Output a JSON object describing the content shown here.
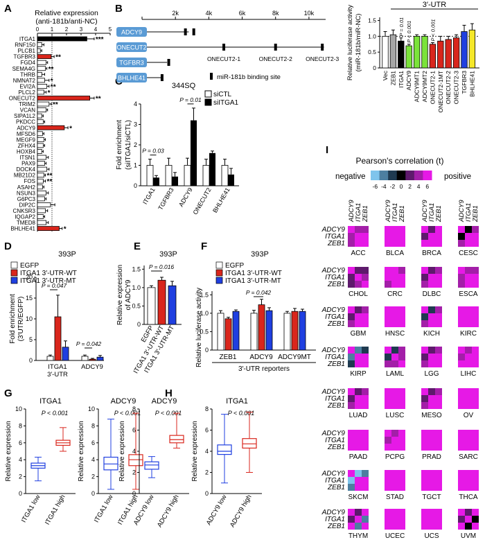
{
  "colors": {
    "black": "#000000",
    "red": "#d9261c",
    "blue": "#1f3fe0",
    "green": "#7be33a",
    "gray": "#a6a6a6",
    "yellow": "#f5e829",
    "boxBlue": "#5a9bd5",
    "magenta": "#e619e6",
    "purple": "#9b1fa0"
  },
  "panels": {
    "A": "A",
    "B": "B",
    "C": "C",
    "D": "D",
    "E": "E",
    "F": "F",
    "G": "G",
    "H": "H",
    "I": "I"
  },
  "panelA": {
    "title": "Relative expression",
    "subtitle": "(anti-181b/anti-NC)",
    "xticks": [
      "0",
      "1",
      "2",
      "3",
      "4",
      "5"
    ],
    "genes": [
      "ITGA1",
      "RNF150",
      "PLCB1",
      "TGFBR3",
      "FGD4",
      "SEMA4G",
      "THRB",
      "NMNAT2",
      "EVI2A",
      "PLCL2",
      "ONECUT2",
      "TRIM2",
      "VCAN",
      "SIPA1L2",
      "PKDCC",
      "ADCY9",
      "MFSD6",
      "MEGF9",
      "ZFHX4",
      "HOXB4",
      "ITSN1",
      "PAX9",
      "DOCK4",
      "MB21D2",
      "FOS",
      "ASAH2",
      "NSUN3",
      "G6PC3",
      "DIP2C",
      "CNKSR3",
      "IQGAP2",
      "TMED8",
      "BHLHE41"
    ],
    "values": [
      3.4,
      0.3,
      0.2,
      0.95,
      0.6,
      0.55,
      0.3,
      0.5,
      0.65,
      0.45,
      3.6,
      0.8,
      0.6,
      0.3,
      0.4,
      1.85,
      0.35,
      0.45,
      0.4,
      0.3,
      0.6,
      0.5,
      0.65,
      0.45,
      0.4,
      0.35,
      0.6,
      0.5,
      0.9,
      0.55,
      0.4,
      0.6,
      1.5
    ],
    "errors": [
      0.5,
      0.15,
      0.1,
      0.2,
      0.1,
      0.1,
      0.2,
      0.3,
      0.15,
      0.15,
      0.3,
      0.15,
      0.1,
      0.1,
      0.1,
      0.25,
      0.1,
      0.1,
      0.1,
      0.1,
      0.15,
      0.1,
      0.15,
      0.1,
      0.15,
      0.1,
      0.15,
      0.1,
      0.3,
      0.15,
      0.1,
      0.15,
      0.2
    ],
    "fill": [
      "black",
      "white",
      "white",
      "red",
      "white",
      "white",
      "white",
      "white",
      "white",
      "white",
      "red",
      "white",
      "white",
      "white",
      "white",
      "red",
      "white",
      "white",
      "white",
      "white",
      "white",
      "white",
      "white",
      "white",
      "white",
      "white",
      "white",
      "white",
      "white",
      "white",
      "white",
      "white",
      "red"
    ],
    "stars": [
      "***",
      "",
      "",
      "**",
      "",
      "**",
      "",
      "*",
      "**",
      "*",
      "**",
      "**",
      "",
      "",
      "",
      "*",
      "",
      "",
      "",
      "",
      "",
      "",
      "",
      "**",
      "**",
      "",
      "",
      "",
      "",
      "",
      "",
      "",
      "*"
    ]
  },
  "panelB": {
    "ruler": [
      "2k",
      "4k",
      "6k",
      "8k",
      "10k"
    ],
    "genes": [
      "ADCY9",
      "ONECUT2",
      "TGFBR3",
      "BHLHE41"
    ],
    "sites": [
      "ONECUT2-1",
      "ONECUT2-2",
      "ONECUT2-3"
    ],
    "legend": "miR-181b binding site",
    "luc": {
      "bracket": "3′-UTR",
      "ylabel": "Relative luciferase activity",
      "ylabel2": "(miR-181b/miR-NC)",
      "yticks": [
        "0",
        "0.5",
        "1.0",
        "1.5"
      ],
      "labels": [
        "Vec",
        "ZEB1",
        "ITGA1",
        "ADCY9",
        "ADCY9MT1",
        "ADCY9MT2",
        "ONECUT2-1",
        "ONECUT2-1MT",
        "ONECUT2-2",
        "ONECUT2-3",
        "TGFBR3",
        "BHLHE41"
      ],
      "values": [
        1.0,
        1.05,
        0.85,
        0.7,
        1.0,
        1.0,
        0.75,
        0.85,
        0.9,
        0.95,
        1.15,
        1.2
      ],
      "errors": [
        0.15,
        0.15,
        0.1,
        0.05,
        0.05,
        0.05,
        0.05,
        0.15,
        0.1,
        0.1,
        0.2,
        0.2
      ],
      "fill": [
        "white",
        "gray",
        "black",
        "green",
        "green",
        "green",
        "red",
        "red",
        "red",
        "red",
        "blue",
        "yellow"
      ],
      "pvals": [
        "",
        "",
        "P = 0.01",
        "P < 0.001",
        "",
        "",
        "P < 0.001",
        "",
        "",
        "",
        "",
        ""
      ]
    }
  },
  "panelC": {
    "title": "344SQ",
    "legend": [
      "siCTL",
      "siITGA1"
    ],
    "ylabel": "Fold enrichment",
    "ylabel2": "(siITGA1/siCTL)",
    "yticks": [
      "0",
      "1",
      "2",
      "3",
      "4"
    ],
    "groups": [
      "ITGA1",
      "TGFBR3",
      "ADCY9",
      "ONECUT2",
      "BHLHE41"
    ],
    "ctl": [
      1.0,
      1.0,
      1.0,
      1.0,
      1.0
    ],
    "ctlErr": [
      0.3,
      0.35,
      0.35,
      0.3,
      0.3
    ],
    "si": [
      0.4,
      0.45,
      3.2,
      1.6,
      0.55
    ],
    "siErr": [
      0.1,
      0.2,
      0.6,
      0.1,
      0.3
    ],
    "pvals": [
      "P = 0.03",
      "",
      "P = 0.01",
      "",
      ""
    ]
  },
  "panelD": {
    "title": "393P",
    "legend": [
      "EGFP",
      "ITGA1 3′-UTR-WT",
      "ITGA1 3′-UTR-MT"
    ],
    "ylabel": "Fold enrichment",
    "ylabel2": "(3′UTR/EGFP)",
    "yticks": [
      "0",
      "5",
      "10",
      "15",
      "20"
    ],
    "groups": [
      "ITGA1",
      "ADCY9"
    ],
    "groupSub": [
      "3′-UTR",
      ""
    ],
    "values": [
      [
        1.0,
        10.5,
        3.2
      ],
      [
        1.0,
        0.3,
        0.8
      ]
    ],
    "errors": [
      [
        0.3,
        5.2,
        1.5
      ],
      [
        0.3,
        0.2,
        0.4
      ]
    ],
    "pvals": [
      "P = 0.047",
      "P = 0.042"
    ]
  },
  "panelE": {
    "title": "393P",
    "ylabel": "Relative expression",
    "ylabel2": "of ADCY9",
    "yticks": [
      "0",
      "0.5",
      "1.0",
      "1.5"
    ],
    "pval": "P = 0.016",
    "labels": [
      "EGFP",
      "ITGA1 3′-UTR-WT",
      "ITGA1 3′-UTR-MT"
    ],
    "values": [
      1.0,
      1.2,
      1.05
    ],
    "errors": [
      0.05,
      0.08,
      0.12
    ]
  },
  "panelF": {
    "title": "393P",
    "legend": [
      "EGFP",
      "ITGA1 3′-UTR-WT",
      "ITGA1 3′-UTR-MT"
    ],
    "ylabel": "Relative luciferase activity",
    "yticks": [
      "0",
      "0.5",
      "1.0",
      "1.5"
    ],
    "pval": "P = 0.042",
    "groups": [
      "ZEB1",
      "ADCY9",
      "ADCY9MT"
    ],
    "footer": "3′-UTR reporters",
    "values": [
      [
        1.0,
        0.85,
        1.05
      ],
      [
        1.0,
        1.23,
        1.07
      ],
      [
        1.0,
        1.05,
        1.05
      ]
    ],
    "errors": [
      [
        0.07,
        0.04,
        0.04
      ],
      [
        0.08,
        0.15,
        0.08
      ],
      [
        0.05,
        0.08,
        0.06
      ]
    ]
  },
  "panelG": {
    "ylabel": "Relative expression",
    "yticks": [
      "0",
      "2",
      "4",
      "6",
      "8",
      "10"
    ],
    "plots": [
      {
        "title": "ITGA1",
        "pval": "P < 0.001",
        "labels": [
          "ITGA1 low",
          "ITGA1 high"
        ],
        "boxes": [
          {
            "min": 1.5,
            "q1": 3.0,
            "med": 3.3,
            "q3": 3.6,
            "max": 4.3
          },
          {
            "min": 5.0,
            "q1": 5.7,
            "med": 6.0,
            "q3": 6.3,
            "max": 7.8
          }
        ]
      },
      {
        "title": "ADCY9",
        "pval": "P < 0.001",
        "labels": [
          "ITGA1 low",
          "ITGA1 high"
        ],
        "boxes": [
          {
            "min": 0.5,
            "q1": 2.8,
            "med": 3.5,
            "q3": 4.3,
            "max": 8.8
          },
          {
            "min": 0.5,
            "q1": 3.3,
            "med": 4.0,
            "q3": 4.6,
            "max": 9.5
          }
        ]
      }
    ]
  },
  "panelH": {
    "ylabel": "Relative expression",
    "yticks": [
      "0",
      "2",
      "4",
      "6",
      "8"
    ],
    "plots": [
      {
        "title": "ADCY9",
        "pval": "P < 0.001",
        "labels": [
          "ADCY9 low",
          "ADCY9 high"
        ],
        "boxes": [
          {
            "min": 1.5,
            "q1": 2.3,
            "med": 2.7,
            "q3": 3.0,
            "max": 3.5
          },
          {
            "min": 4.3,
            "q1": 4.8,
            "med": 5.1,
            "q3": 5.5,
            "max": 7.6
          }
        ]
      },
      {
        "title": "ITGA1",
        "pval": "P < 0.001",
        "labels": [
          "ADCY9 low",
          "ADCY9 high"
        ],
        "boxes": [
          {
            "min": 1.0,
            "q1": 3.7,
            "med": 4.0,
            "q3": 4.6,
            "max": 7.5
          },
          {
            "min": 2.0,
            "q1": 4.3,
            "med": 4.7,
            "q3": 5.2,
            "max": 7.7
          }
        ]
      }
    ]
  },
  "panelI": {
    "title": "Pearson's correlation (t)",
    "negative": "negative",
    "positive": "positive",
    "scale": [
      "-6",
      "-4",
      "-2",
      "0",
      "2",
      "4",
      "6"
    ],
    "rowLabels": [
      "ADCY9",
      "ITGA1",
      "ZEB1"
    ],
    "cancers": [
      "ACC",
      "BLCA",
      "BRCA",
      "CESC",
      "CHOL",
      "CRC",
      "DLBC",
      "ESCA",
      "GBM",
      "HNSC",
      "KICH",
      "KIRC",
      "KIRP",
      "LAML",
      "LGG",
      "LIHC",
      "LUAD",
      "LUSC",
      "MESO",
      "OV",
      "PAAD",
      "PCPG",
      "PRAD",
      "SARC",
      "SKCM",
      "STAD",
      "TGCT",
      "THCA",
      "THYM",
      "UCEC",
      "UCS",
      "UVM"
    ],
    "corr": [
      [
        3,
        4,
        5
      ],
      [
        6,
        6,
        6
      ],
      [
        2,
        6,
        6
      ],
      [
        0,
        4,
        5
      ],
      [
        1,
        2,
        4
      ],
      [
        6,
        4,
        6
      ],
      [
        1,
        4,
        5
      ],
      [
        4,
        3,
        6
      ],
      [
        2,
        3,
        5
      ],
      [
        6,
        6,
        6
      ],
      [
        -2,
        3,
        5
      ],
      [
        6,
        6,
        6
      ],
      [
        -3,
        -2,
        5
      ],
      [
        -2,
        4,
        3
      ],
      [
        1,
        4,
        5
      ],
      [
        3,
        5,
        6
      ],
      [
        1,
        4,
        5
      ],
      [
        6,
        5,
        6
      ],
      [
        1,
        4,
        5
      ],
      [
        6,
        6,
        6
      ],
      [
        5,
        6,
        6
      ],
      [
        4,
        5,
        5
      ],
      [
        6,
        6,
        6
      ],
      [
        6,
        5,
        6
      ],
      [
        -5,
        -4,
        6
      ],
      [
        6,
        6,
        6
      ],
      [
        6,
        6,
        6
      ],
      [
        6,
        6,
        6
      ],
      [
        1,
        5,
        -4
      ],
      [
        6,
        6,
        6
      ],
      [
        6,
        5,
        6
      ],
      [
        2,
        5,
        0
      ]
    ]
  }
}
